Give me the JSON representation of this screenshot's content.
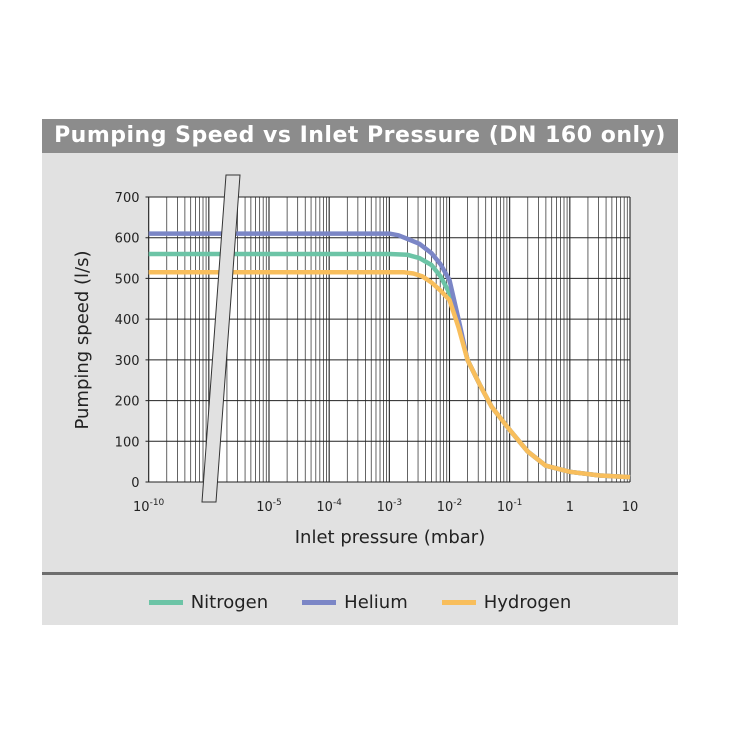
{
  "chart_data": {
    "type": "line",
    "title": "Pumping Speed vs Inlet Pressure (DN 160 only)",
    "xlabel": "Inlet pressure (mbar)",
    "ylabel": "Pumping speed (l/s)",
    "xscale": "log (axis break between 10^-10 and 10^-5)",
    "xlim_log10": [
      -10,
      1
    ],
    "ylim": [
      0,
      700
    ],
    "yticks": [
      0,
      100,
      200,
      300,
      400,
      500,
      600,
      700
    ],
    "xticks": [
      {
        "log": -10,
        "base": "10",
        "exp": "-10"
      },
      {
        "log": -5,
        "base": "10",
        "exp": "-5"
      },
      {
        "log": -4,
        "base": "10",
        "exp": "-4"
      },
      {
        "log": -3,
        "base": "10",
        "exp": "-3"
      },
      {
        "log": -2,
        "base": "10",
        "exp": "-2"
      },
      {
        "log": -1,
        "base": "10",
        "exp": "-1"
      },
      {
        "log": 0,
        "base": "1",
        "exp": ""
      },
      {
        "log": 1,
        "base": "10",
        "exp": ""
      }
    ],
    "grid": true,
    "legend_position": "bottom",
    "series": [
      {
        "name": "Nitrogen",
        "color": "#6cc4a6",
        "log_x": [
          -10,
          -3,
          -2.7,
          -2.5,
          -2.3,
          -2.15,
          -2,
          -1.85,
          -1.7,
          -1.5,
          -1.3,
          -1,
          -0.7,
          -0.4,
          0,
          0.5,
          1
        ],
        "y": [
          560,
          560,
          558,
          550,
          533,
          505,
          464,
          390,
          300,
          240,
          185,
          128,
          75,
          40,
          25,
          16,
          12
        ]
      },
      {
        "name": "Helium",
        "color": "#7b86c6",
        "log_x": [
          -10,
          -3,
          -2.85,
          -2.7,
          -2.5,
          -2.3,
          -2.15,
          -2,
          -1.85,
          -1.7,
          -1.5,
          -1.3,
          -1,
          -0.7,
          -0.4,
          0,
          0.5,
          1
        ],
        "y": [
          610,
          610,
          606,
          597,
          585,
          562,
          535,
          496,
          400,
          300,
          240,
          185,
          128,
          75,
          40,
          25,
          16,
          12
        ]
      },
      {
        "name": "Hydrogen",
        "color": "#f8be5c",
        "log_x": [
          -10,
          -2.75,
          -2.6,
          -2.45,
          -2.3,
          -2.15,
          -2,
          -1.85,
          -1.7,
          -1.5,
          -1.3,
          -1,
          -0.7,
          -0.4,
          0,
          0.5,
          1
        ],
        "y": [
          515,
          515,
          512,
          505,
          490,
          470,
          447,
          380,
          300,
          240,
          185,
          128,
          75,
          40,
          25,
          16,
          12
        ]
      }
    ]
  }
}
